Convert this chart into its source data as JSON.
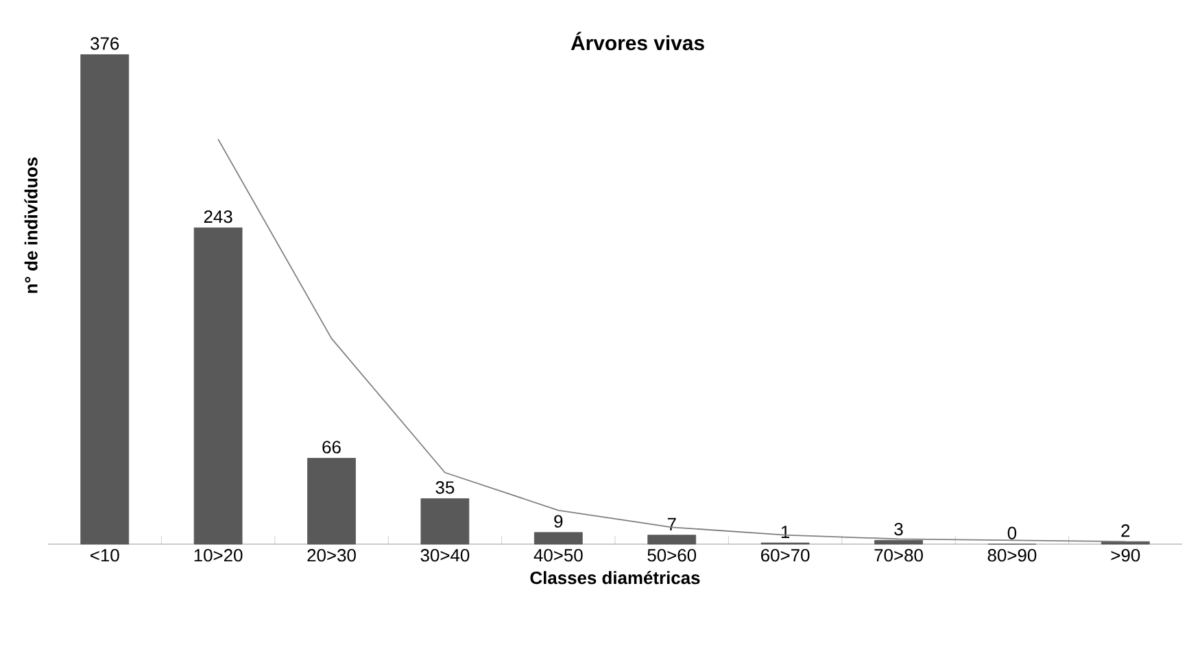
{
  "chart_data": {
    "type": "bar",
    "title": "Árvores vivas",
    "xlabel": "Classes diamétricas",
    "ylabel": "n° de indivíduos",
    "categories": [
      "<10",
      "10>20",
      "20>30",
      "30>40",
      "40>50",
      "50>60",
      "60>70",
      "70>80",
      "80>90",
      ">90"
    ],
    "series": [
      {
        "color": "#595959",
        "values": [
          376,
          243,
          66,
          35,
          9,
          7,
          1,
          3,
          0,
          2
        ],
        "value_labels": [
          "376",
          "243",
          "66",
          "35",
          "9",
          "7",
          "1",
          "3",
          "0",
          "2"
        ]
      },
      {
        "type": "line",
        "color": "#7f7f7f",
        "values": [
          null,
          311,
          158,
          55,
          26,
          13,
          7,
          4,
          3,
          2
        ]
      }
    ]
  }
}
